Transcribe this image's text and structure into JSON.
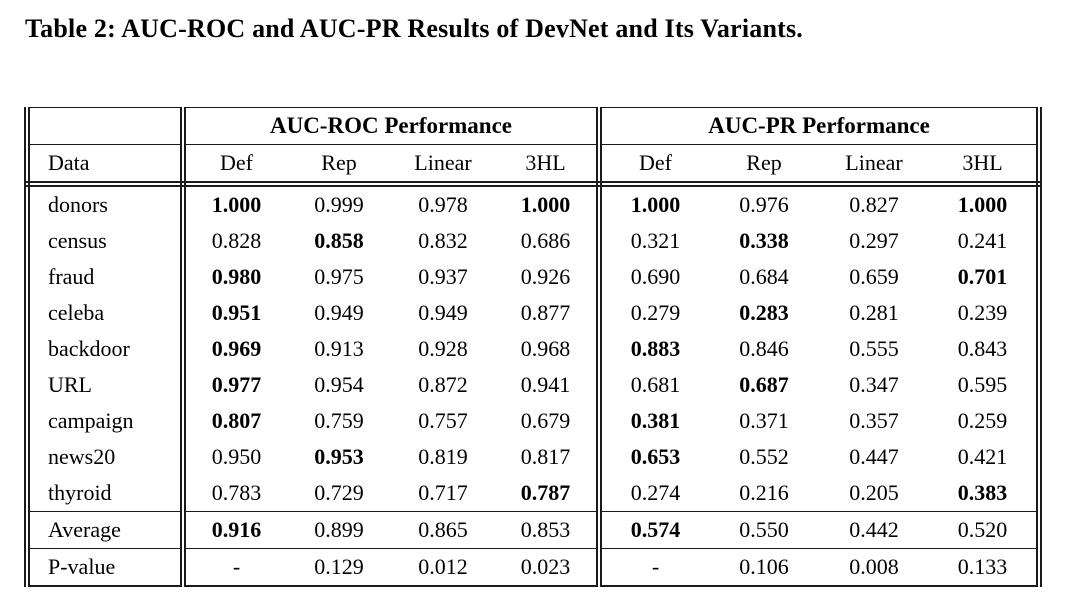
{
  "chart_data": {
    "type": "table",
    "title": "Table 2: AUC-ROC and AUC-PR Results of DevNet and Its Variants.",
    "column_groups": [
      "AUC-ROC Performance",
      "AUC-PR Performance"
    ],
    "row_header": "Data",
    "columns": [
      "Def",
      "Rep",
      "Linear",
      "3HL",
      "Def",
      "Rep",
      "Linear",
      "3HL"
    ],
    "rows": [
      {
        "label": "donors",
        "values": [
          "1.000",
          "0.999",
          "0.978",
          "1.000",
          "1.000",
          "0.976",
          "0.827",
          "1.000"
        ],
        "bold": [
          true,
          false,
          false,
          true,
          true,
          false,
          false,
          true
        ]
      },
      {
        "label": "census",
        "values": [
          "0.828",
          "0.858",
          "0.832",
          "0.686",
          "0.321",
          "0.338",
          "0.297",
          "0.241"
        ],
        "bold": [
          false,
          true,
          false,
          false,
          false,
          true,
          false,
          false
        ]
      },
      {
        "label": "fraud",
        "values": [
          "0.980",
          "0.975",
          "0.937",
          "0.926",
          "0.690",
          "0.684",
          "0.659",
          "0.701"
        ],
        "bold": [
          true,
          false,
          false,
          false,
          false,
          false,
          false,
          true
        ]
      },
      {
        "label": "celeba",
        "values": [
          "0.951",
          "0.949",
          "0.949",
          "0.877",
          "0.279",
          "0.283",
          "0.281",
          "0.239"
        ],
        "bold": [
          true,
          false,
          false,
          false,
          false,
          true,
          false,
          false
        ]
      },
      {
        "label": "backdoor",
        "values": [
          "0.969",
          "0.913",
          "0.928",
          "0.968",
          "0.883",
          "0.846",
          "0.555",
          "0.843"
        ],
        "bold": [
          true,
          false,
          false,
          false,
          true,
          false,
          false,
          false
        ]
      },
      {
        "label": "URL",
        "values": [
          "0.977",
          "0.954",
          "0.872",
          "0.941",
          "0.681",
          "0.687",
          "0.347",
          "0.595"
        ],
        "bold": [
          true,
          false,
          false,
          false,
          false,
          true,
          false,
          false
        ]
      },
      {
        "label": "campaign",
        "values": [
          "0.807",
          "0.759",
          "0.757",
          "0.679",
          "0.381",
          "0.371",
          "0.357",
          "0.259"
        ],
        "bold": [
          true,
          false,
          false,
          false,
          true,
          false,
          false,
          false
        ]
      },
      {
        "label": "news20",
        "values": [
          "0.950",
          "0.953",
          "0.819",
          "0.817",
          "0.653",
          "0.552",
          "0.447",
          "0.421"
        ],
        "bold": [
          false,
          true,
          false,
          false,
          true,
          false,
          false,
          false
        ]
      },
      {
        "label": "thyroid",
        "values": [
          "0.783",
          "0.729",
          "0.717",
          "0.787",
          "0.274",
          "0.216",
          "0.205",
          "0.383"
        ],
        "bold": [
          false,
          false,
          false,
          true,
          false,
          false,
          false,
          true
        ]
      }
    ],
    "summary_rows": [
      {
        "label": "Average",
        "values": [
          "0.916",
          "0.899",
          "0.865",
          "0.853",
          "0.574",
          "0.550",
          "0.442",
          "0.520"
        ],
        "bold": [
          true,
          false,
          false,
          false,
          true,
          false,
          false,
          false
        ]
      },
      {
        "label": "P-value",
        "values": [
          "-",
          "0.129",
          "0.012",
          "0.023",
          "-",
          "0.106",
          "0.008",
          "0.133"
        ],
        "bold": [
          false,
          false,
          false,
          false,
          false,
          false,
          false,
          false
        ]
      }
    ]
  }
}
